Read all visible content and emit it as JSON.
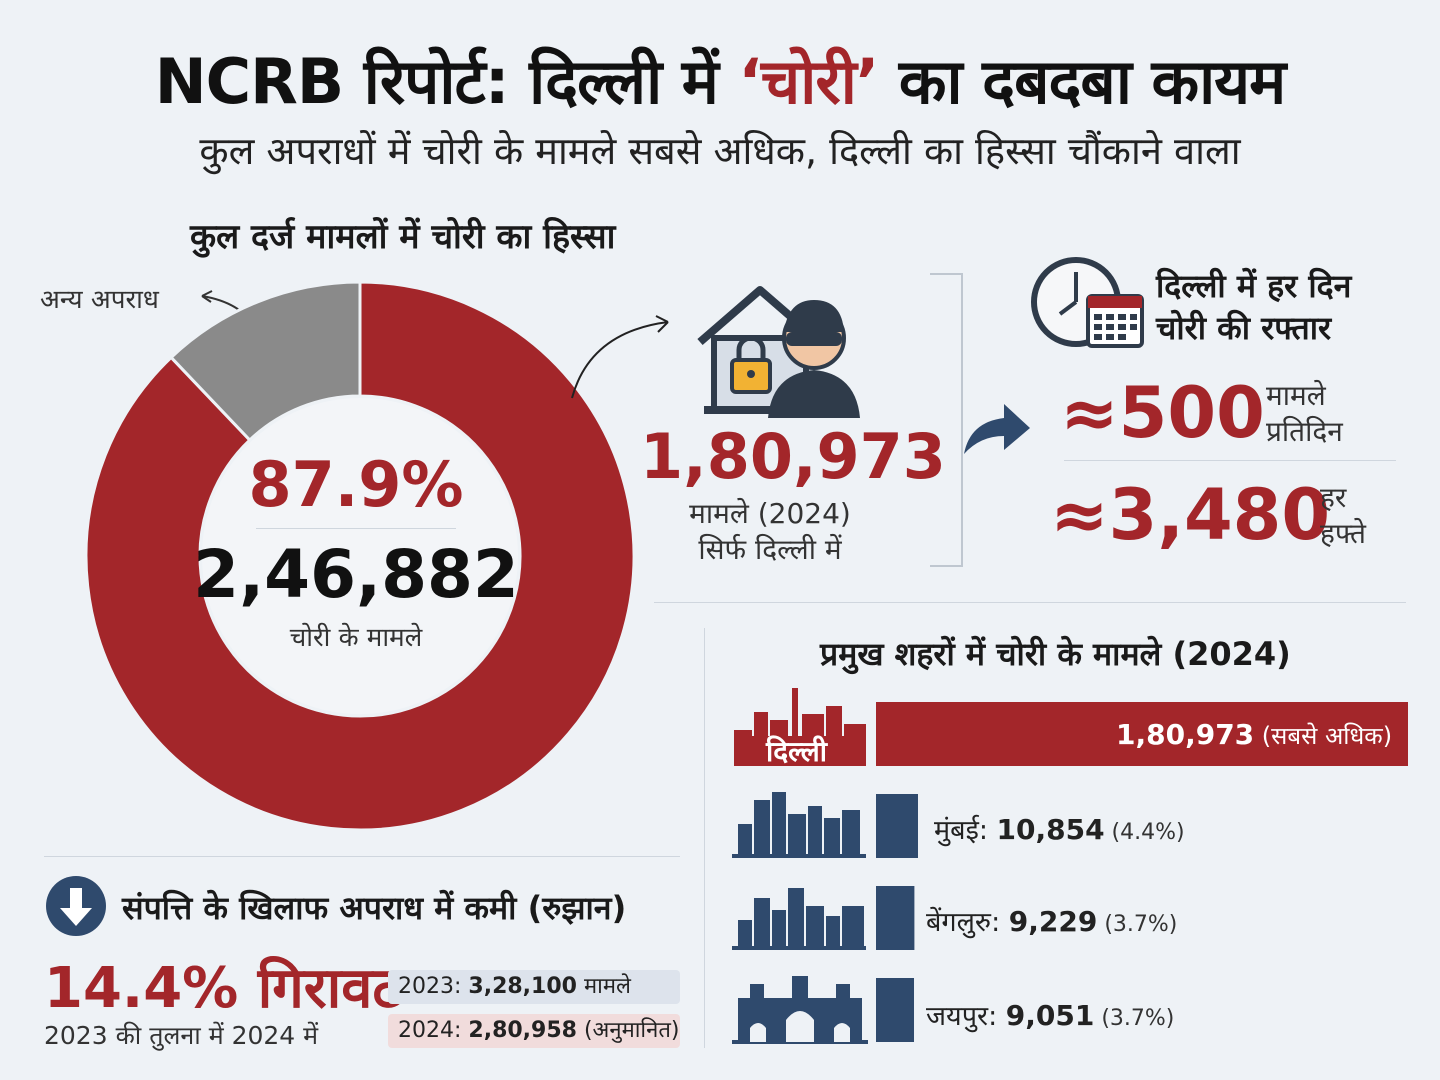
{
  "header": {
    "title_pre": "NCRB रिपोर्ट: दिल्ली में ",
    "title_red": "‘चोरी’",
    "title_post": " का दबदबा कायम",
    "subtitle": "कुल अपराधों में चोरी के मामले सबसे अधिक, दिल्ली का हिस्सा चौंकाने वाला"
  },
  "donut": {
    "heading": "कुल दर्ज मामलों में चोरी का हिस्सा",
    "other_label": "अन्य अपराध",
    "percent": "87.9%",
    "count": "2,46,882",
    "count_label": "चोरी के मामले"
  },
  "delhi_total": {
    "number": "1,80,973",
    "line1": "मामले (2024)",
    "line2": "सिर्फ दिल्ली में",
    "icon": "house-thief-icon"
  },
  "daily": {
    "heading_line1": "दिल्ली में हर दिन",
    "heading_line2": "चोरी की रफ्तार",
    "per_day_value": "≈500",
    "per_day_l1": "मामले",
    "per_day_l2": "प्रतिदिन",
    "per_week_value": "≈3,480",
    "per_week_l1": "हर",
    "per_week_l2": "हफ्ते",
    "icon": "clock-calendar-icon"
  },
  "trend": {
    "heading": "संपत्ति के खिलाफ अपराध में कमी (रुझान)",
    "decline": "14.4% गिरावट",
    "decline_sub": "2023 की तुलना में 2024 में",
    "y2023_label": "2023: ",
    "y2023_value": "3,28,100",
    "y2023_suffix": " मामले",
    "y2024_label": "2024: ",
    "y2024_value": "2,80,958",
    "y2024_suffix": " (अनुमानित)",
    "icon": "down-arrow-icon"
  },
  "cities": {
    "heading": "प्रमुख शहरों में चोरी के मामले (2024)",
    "delhi_name": "दिल्ली",
    "delhi_value": "1,80,973",
    "delhi_note": " (सबसे अधिक)",
    "rows": [
      {
        "name": "मुंबई: ",
        "value": "10,854",
        "pct": " (4.4%)"
      },
      {
        "name": "बेंगलुरु: ",
        "value": "9,229",
        "pct": " (3.7%)"
      },
      {
        "name": "जयपुर: ",
        "value": "9,051",
        "pct": " (3.7%)"
      }
    ]
  },
  "colors": {
    "accent_red": "#a3262a",
    "gray": "#8a8a8a",
    "navy": "#2f4a6d",
    "background": "#eef2f6"
  },
  "chart_data": [
    {
      "type": "pie",
      "title": "कुल दर्ज मामलों में चोरी का हिस्सा",
      "categories": [
        "चोरी के मामले",
        "अन्य अपराध"
      ],
      "values": [
        87.9,
        12.1
      ],
      "colors": [
        "#a3262a",
        "#8a8a8a"
      ]
    },
    {
      "type": "bar",
      "title": "प्रमुख शहरों में चोरी के मामले (2024)",
      "categories": [
        "दिल्ली",
        "मुंबई",
        "बेंगलुरु",
        "जयपुर"
      ],
      "values": [
        180973,
        10854,
        9229,
        9051
      ],
      "colors": [
        "#a3262a",
        "#2f4a6d",
        "#2f4a6d",
        "#2f4a6d"
      ]
    }
  ]
}
